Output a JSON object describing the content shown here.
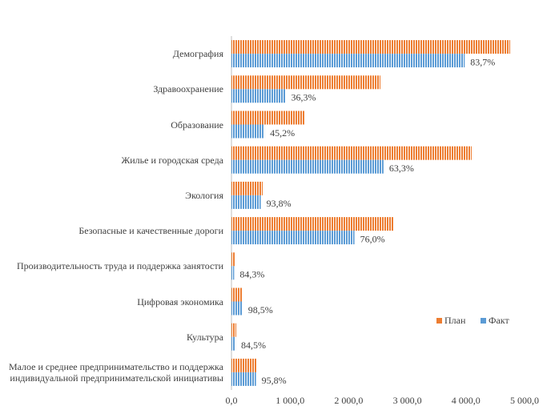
{
  "chart_data": {
    "type": "barh",
    "categories": [
      "Демография",
      "Здравоохранение",
      "Образование",
      "Жилье и городская среда",
      "Экология",
      "Безопасные  и качественные  дороги",
      "Производительность труда и поддержка занятости",
      "Цифровая экономика",
      "Культура",
      "Малое и среднее предпринимательство и поддержка\nиндивидуальной предпринимательской  инициативы"
    ],
    "series": [
      {
        "name": "План",
        "color": "#ed7d31",
        "values": [
          4754,
          2541,
          1243,
          4098,
          533,
          2760,
          55,
          191,
          82,
          437
        ]
      },
      {
        "name": "Факт",
        "color": "#5b9bd5",
        "values": [
          3979,
          922,
          562,
          2594,
          500,
          2098,
          46,
          188,
          69,
          419
        ],
        "bar_labels": [
          "83,7%",
          "36,3%",
          "45,2%",
          "63,3%",
          "93,8%",
          "76,0%",
          "84,3%",
          "98,5%",
          "84,5%",
          "95,8%"
        ]
      }
    ],
    "xlim": [
      0,
      5000
    ],
    "xticks": [
      {
        "value": 0,
        "label": "0,0"
      },
      {
        "value": 1000,
        "label": "1 000,0"
      },
      {
        "value": 2000,
        "label": "2 000,0"
      },
      {
        "value": 3000,
        "label": "3 000,0"
      },
      {
        "value": 4000,
        "label": "4 000,0"
      },
      {
        "value": 5000,
        "label": "5 000,0"
      }
    ],
    "legend": "right"
  }
}
